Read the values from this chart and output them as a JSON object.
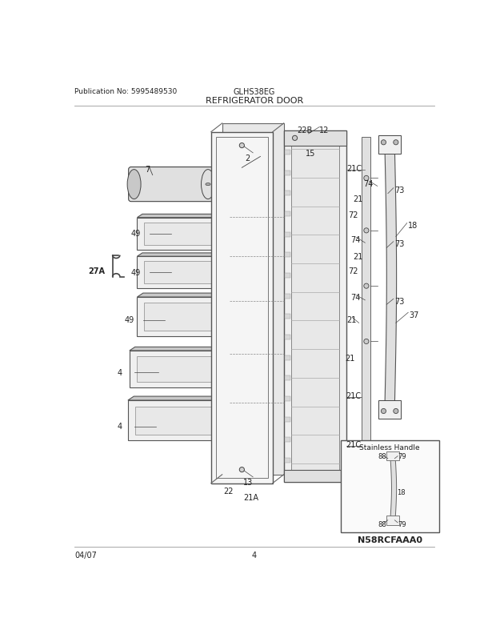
{
  "title_main": "REFRIGERATOR DOOR",
  "pub_no": "Publication No: 5995489530",
  "model": "GLHS38EG",
  "date": "04/07",
  "page": "4",
  "bg_color": "#ffffff",
  "line_color": "#444444",
  "text_color": "#222222",
  "inset_label": "Stainless Handle",
  "inset_code": "N58RCFAAA0"
}
